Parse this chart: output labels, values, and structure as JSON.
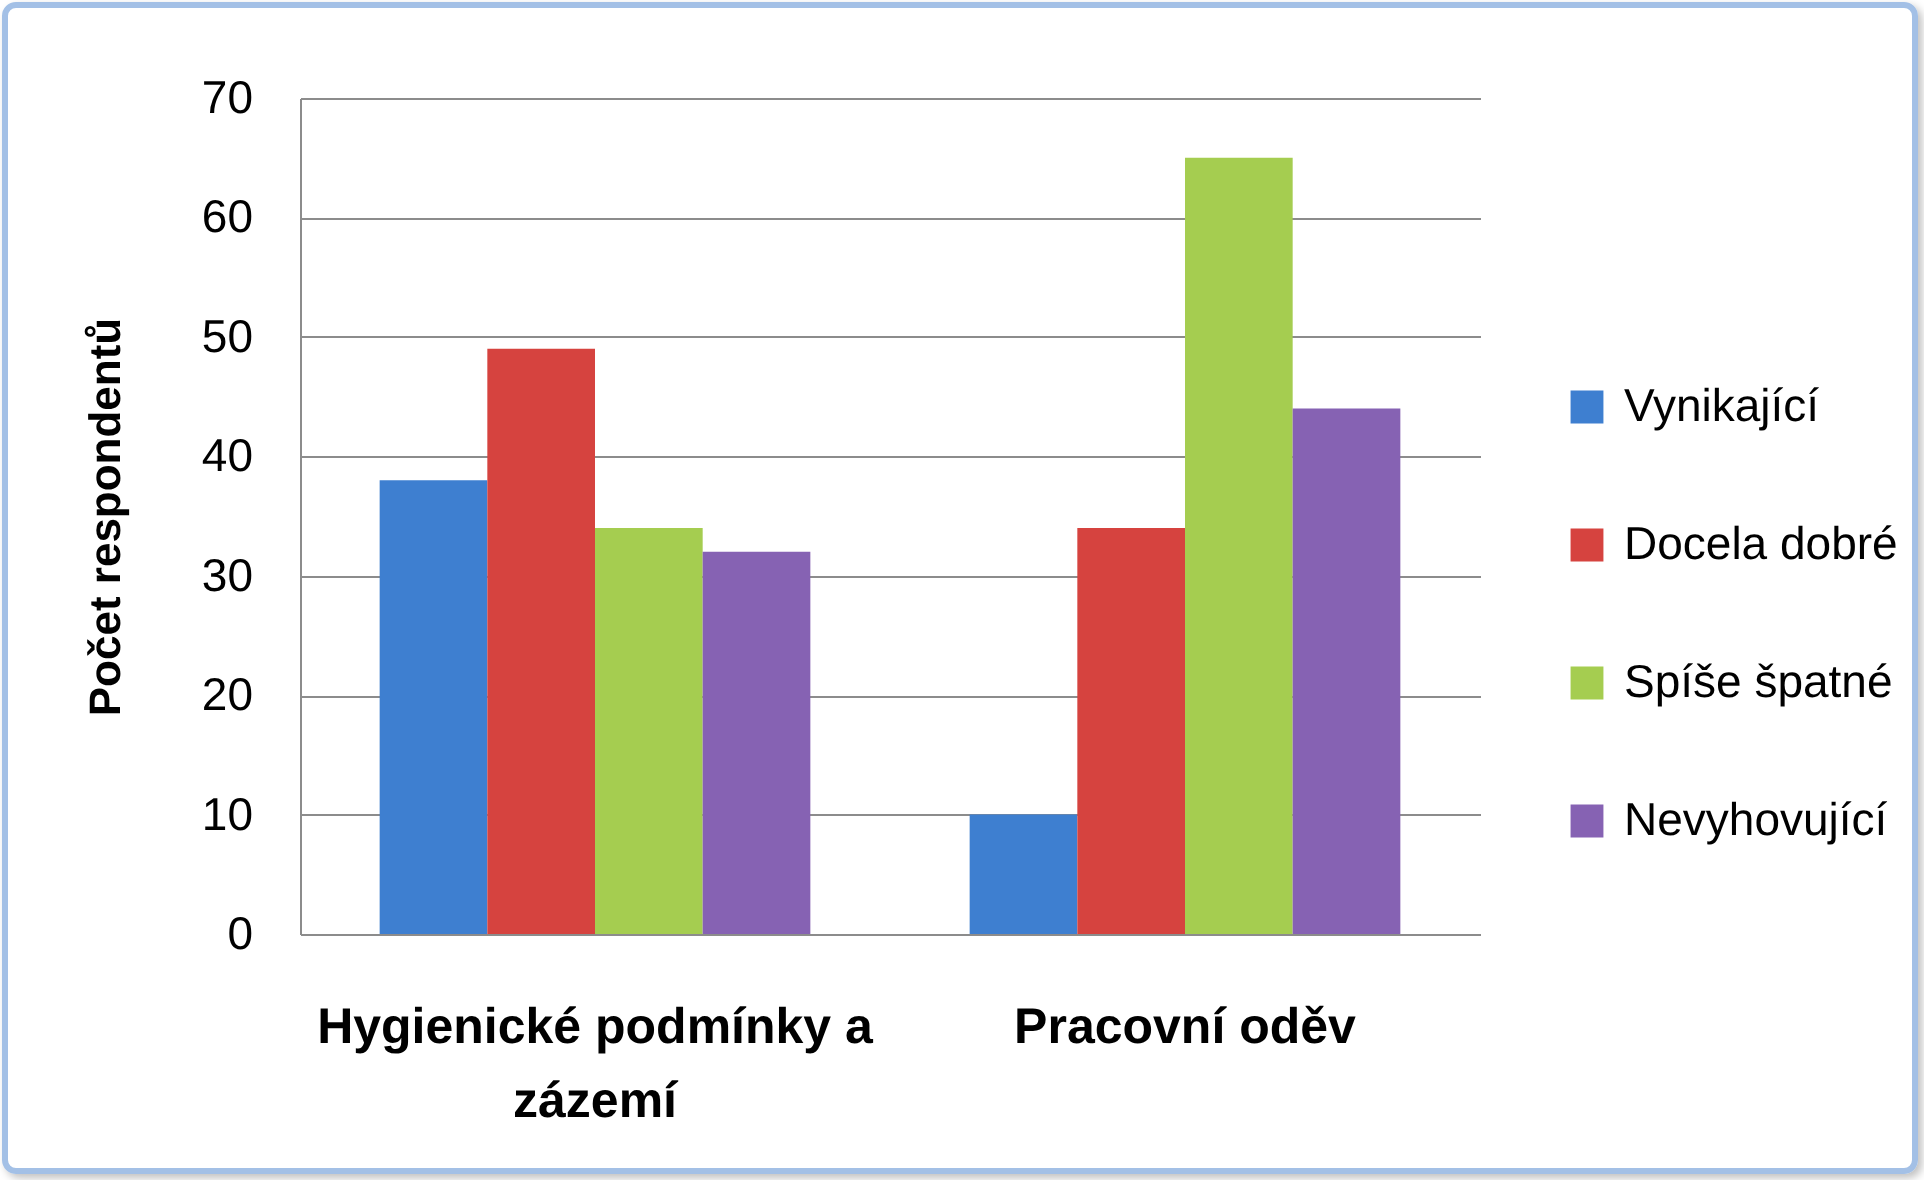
{
  "chart_data": {
    "type": "bar",
    "categories": [
      "Hygienické podmínky a zázemí",
      "Pracovní oděv"
    ],
    "ylabel": "Počet respondentů",
    "ylim": [
      0,
      70
    ],
    "yticks": [
      0,
      10,
      20,
      30,
      40,
      50,
      60,
      70
    ],
    "grid": "y",
    "legend": "right",
    "series": [
      {
        "name": "Vynikající",
        "color": "#3e7fd0",
        "values": [
          38,
          10
        ]
      },
      {
        "name": "Docela dobré",
        "color": "#d6433f",
        "values": [
          49,
          34
        ]
      },
      {
        "name": "Spíše špatné",
        "color": "#a5cd50",
        "values": [
          34,
          65
        ]
      },
      {
        "name": "Nevyhovující",
        "color": "#8662b3",
        "values": [
          32,
          44
        ]
      }
    ]
  }
}
